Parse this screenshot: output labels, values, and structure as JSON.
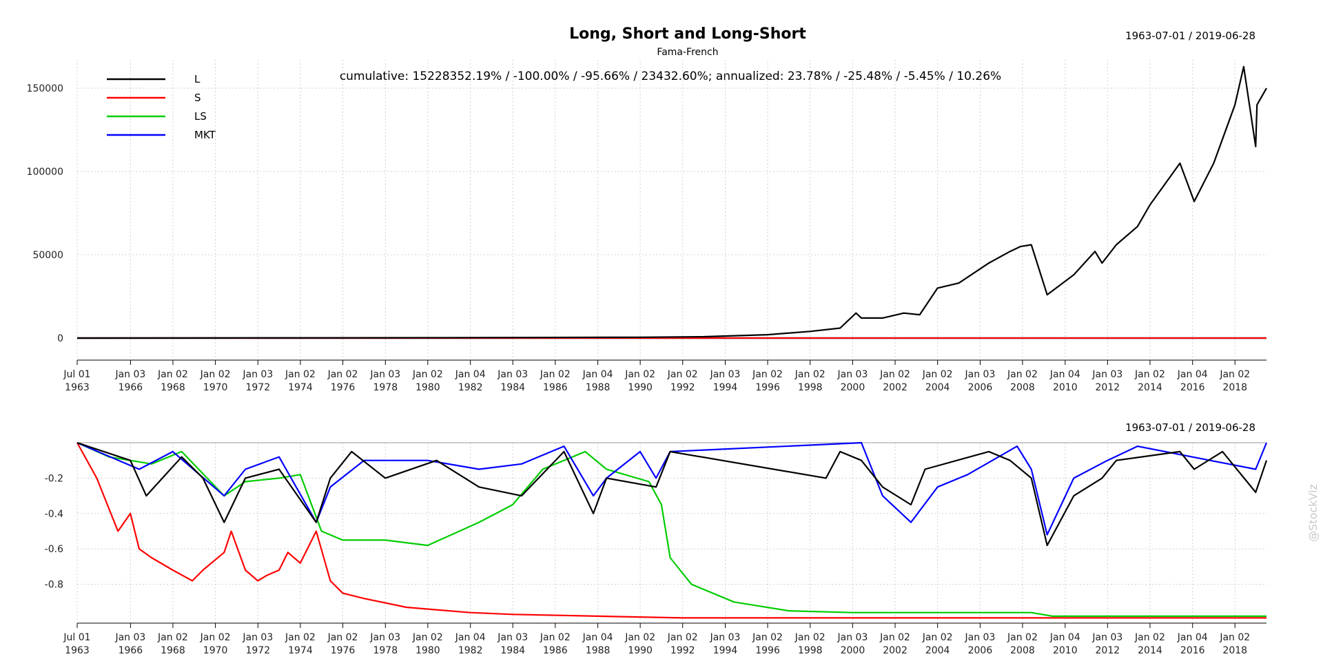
{
  "chart_data": [
    {
      "type": "line",
      "title": "Long, Short and Long-Short",
      "subtitle": "Fama-French",
      "date_range": "1963-07-01 / 2019-06-28",
      "annotation": "cumulative: 15228352.19% / -100.00% / -95.66% / 23432.60%; annualized: 23.78% / -25.48% / -5.45% / 10.26%",
      "xlabel": "",
      "ylabel": "",
      "ylim": [
        -12000,
        167000
      ],
      "y_ticks": [
        "0",
        "50000",
        "100000",
        "150000"
      ],
      "x_ticks": [
        {
          "date": "1963-07-01",
          "label": [
            "Jul 01",
            "1963"
          ]
        },
        {
          "date": "1966-01-03",
          "label": [
            "Jan 03",
            "1966"
          ]
        },
        {
          "date": "1968-01-02",
          "label": [
            "Jan 02",
            "1968"
          ]
        },
        {
          "date": "1970-01-02",
          "label": [
            "Jan 02",
            "1970"
          ]
        },
        {
          "date": "1972-01-03",
          "label": [
            "Jan 03",
            "1972"
          ]
        },
        {
          "date": "1974-01-02",
          "label": [
            "Jan 02",
            "1974"
          ]
        },
        {
          "date": "1976-01-02",
          "label": [
            "Jan 02",
            "1976"
          ]
        },
        {
          "date": "1978-01-03",
          "label": [
            "Jan 03",
            "1978"
          ]
        },
        {
          "date": "1980-01-02",
          "label": [
            "Jan 02",
            "1980"
          ]
        },
        {
          "date": "1982-01-04",
          "label": [
            "Jan 04",
            "1982"
          ]
        },
        {
          "date": "1984-01-03",
          "label": [
            "Jan 03",
            "1984"
          ]
        },
        {
          "date": "1986-01-02",
          "label": [
            "Jan 02",
            "1986"
          ]
        },
        {
          "date": "1988-01-04",
          "label": [
            "Jan 04",
            "1988"
          ]
        },
        {
          "date": "1990-01-02",
          "label": [
            "Jan 02",
            "1990"
          ]
        },
        {
          "date": "1992-01-02",
          "label": [
            "Jan 02",
            "1992"
          ]
        },
        {
          "date": "1994-01-03",
          "label": [
            "Jan 03",
            "1994"
          ]
        },
        {
          "date": "1996-01-02",
          "label": [
            "Jan 02",
            "1996"
          ]
        },
        {
          "date": "1998-01-02",
          "label": [
            "Jan 02",
            "1998"
          ]
        },
        {
          "date": "2000-01-03",
          "label": [
            "Jan 03",
            "2000"
          ]
        },
        {
          "date": "2002-01-02",
          "label": [
            "Jan 02",
            "2002"
          ]
        },
        {
          "date": "2004-01-02",
          "label": [
            "Jan 02",
            "2004"
          ]
        },
        {
          "date": "2006-01-03",
          "label": [
            "Jan 03",
            "2006"
          ]
        },
        {
          "date": "2008-01-02",
          "label": [
            "Jan 02",
            "2008"
          ]
        },
        {
          "date": "2010-01-04",
          "label": [
            "Jan 04",
            "2010"
          ]
        },
        {
          "date": "2012-01-03",
          "label": [
            "Jan 03",
            "2012"
          ]
        },
        {
          "date": "2014-01-02",
          "label": [
            "Jan 02",
            "2014"
          ]
        },
        {
          "date": "2016-01-04",
          "label": [
            "Jan 04",
            "2016"
          ]
        },
        {
          "date": "2018-01-02",
          "label": [
            "Jan 02",
            "2018"
          ]
        }
      ],
      "legend": "top-left",
      "grid": true,
      "series": [
        {
          "name": "L",
          "color": "#000000",
          "x": [
            "1963-07-01",
            "1980-01-01",
            "1990-01-01",
            "1993-01-01",
            "1996-01-01",
            "1998-01-01",
            "1999-06-01",
            "2000-03-01",
            "2000-06-01",
            "2001-06-01",
            "2002-06-01",
            "2003-03-01",
            "2004-01-01",
            "2005-01-01",
            "2006-06-01",
            "2007-06-01",
            "2007-12-01",
            "2008-06-01",
            "2009-03-01",
            "2010-06-01",
            "2011-06-01",
            "2011-10-01",
            "2012-06-01",
            "2013-06-01",
            "2014-01-01",
            "2015-06-01",
            "2016-02-01",
            "2017-01-01",
            "2018-01-01",
            "2018-06-01",
            "2018-12-24",
            "2019-01-15",
            "2019-06-28"
          ],
          "values": [
            0,
            200,
            500,
            800,
            2000,
            4000,
            6000,
            15000,
            12000,
            12000,
            15000,
            14000,
            30000,
            33000,
            45000,
            52000,
            55000,
            56000,
            26000,
            38000,
            52000,
            45000,
            56000,
            67000,
            80000,
            105000,
            82000,
            105000,
            140000,
            163000,
            115000,
            140000,
            150000
          ]
        },
        {
          "name": "S",
          "color": "#ff0000",
          "x": [
            "1963-07-01",
            "2019-06-28"
          ],
          "values": [
            0,
            0
          ]
        },
        {
          "name": "LS",
          "color": "#00cc00",
          "x": [
            "1963-07-01",
            "2019-06-28"
          ],
          "values": [
            0,
            0
          ]
        },
        {
          "name": "MKT",
          "color": "#0000ff",
          "x": [
            "1963-07-01",
            "2019-06-28"
          ],
          "values": [
            0,
            0
          ]
        }
      ]
    },
    {
      "type": "line",
      "title": "",
      "date_range": "1963-07-01 / 2019-06-28",
      "xlabel": "",
      "ylabel": "",
      "ylim": [
        -1.0,
        0.0
      ],
      "y_ticks": [
        "-0.2",
        "-0.4",
        "-0.6",
        "-0.8"
      ],
      "grid": true,
      "series": [
        {
          "name": "S",
          "color": "#ff0000",
          "x": [
            "1963-07-01",
            "1964-06-01",
            "1965-06-01",
            "1966-01-01",
            "1966-06-01",
            "1967-01-01",
            "1968-01-01",
            "1968-12-01",
            "1969-06-01",
            "1970-06-01",
            "1970-10-01",
            "1971-06-01",
            "1972-01-01",
            "1972-06-01",
            "1973-01-01",
            "1973-06-01",
            "1974-01-01",
            "1974-06-01",
            "1974-10-01",
            "1975-06-01",
            "1976-01-01",
            "1977-01-01",
            "1979-01-01",
            "1982-01-01",
            "1984-01-01",
            "1988-01-01",
            "1992-01-01",
            "2019-06-28"
          ],
          "values": [
            0.0,
            -0.2,
            -0.5,
            -0.4,
            -0.6,
            -0.65,
            -0.72,
            -0.78,
            -0.72,
            -0.62,
            -0.5,
            -0.72,
            -0.78,
            -0.75,
            -0.72,
            -0.62,
            -0.68,
            -0.58,
            -0.5,
            -0.78,
            -0.85,
            -0.88,
            -0.93,
            -0.96,
            -0.97,
            -0.98,
            -0.99,
            -0.99
          ]
        },
        {
          "name": "LS",
          "color": "#00cc00",
          "x": [
            "1963-07-01",
            "1965-01-01",
            "1966-01-01",
            "1967-01-01",
            "1968-06-01",
            "1970-06-01",
            "1971-06-01",
            "1973-01-01",
            "1974-01-01",
            "1975-01-01",
            "1976-01-01",
            "1978-01-01",
            "1980-01-01",
            "1982-06-01",
            "1984-01-01",
            "1985-06-01",
            "1987-06-01",
            "1988-06-01",
            "1990-06-01",
            "1991-01-01",
            "1991-06-01",
            "1992-06-01",
            "1994-06-01",
            "1997-01-01",
            "2000-01-01",
            "2003-01-01",
            "2006-01-01",
            "2008-06-01",
            "2009-06-01",
            "2019-06-28"
          ],
          "values": [
            0.0,
            -0.08,
            -0.1,
            -0.12,
            -0.05,
            -0.3,
            -0.22,
            -0.2,
            -0.18,
            -0.5,
            -0.55,
            -0.55,
            -0.58,
            -0.45,
            -0.35,
            -0.15,
            -0.05,
            -0.15,
            -0.22,
            -0.35,
            -0.65,
            -0.8,
            -0.9,
            -0.95,
            -0.96,
            -0.96,
            -0.96,
            -0.96,
            -0.98,
            -0.98
          ]
        },
        {
          "name": "MKT",
          "color": "#0000ff",
          "x": [
            "1963-07-01",
            "1966-06-01",
            "1968-01-01",
            "1970-06-01",
            "1971-06-01",
            "1973-01-01",
            "1974-10-01",
            "1975-06-01",
            "1977-01-01",
            "1980-01-01",
            "1982-06-01",
            "1984-06-01",
            "1986-06-01",
            "1987-10-19",
            "1988-06-01",
            "1990-01-01",
            "1990-10-01",
            "1991-06-01",
            "2000-06-01",
            "2001-06-01",
            "2002-10-01",
            "2004-01-01",
            "2005-06-01",
            "2007-10-01",
            "2008-06-01",
            "2009-03-01",
            "2010-06-01",
            "2012-01-01",
            "2013-06-01",
            "2018-12-24",
            "2019-06-28"
          ],
          "values": [
            0.0,
            -0.15,
            -0.05,
            -0.3,
            -0.15,
            -0.08,
            -0.45,
            -0.25,
            -0.1,
            -0.1,
            -0.15,
            -0.12,
            -0.02,
            -0.3,
            -0.2,
            -0.05,
            -0.2,
            -0.05,
            0.0,
            -0.3,
            -0.45,
            -0.25,
            -0.18,
            -0.02,
            -0.15,
            -0.52,
            -0.2,
            -0.1,
            -0.02,
            -0.15,
            0.0
          ]
        },
        {
          "name": "L",
          "color": "#000000",
          "x": [
            "1963-07-01",
            "1966-01-01",
            "1966-10-01",
            "1968-06-01",
            "1969-06-01",
            "1970-06-01",
            "1971-06-01",
            "1973-01-01",
            "1974-10-01",
            "1975-06-01",
            "1976-06-01",
            "1978-01-01",
            "1980-06-01",
            "1982-06-01",
            "1984-06-01",
            "1986-06-01",
            "1987-10-19",
            "1988-06-01",
            "1990-10-01",
            "1991-06-01",
            "1998-10-01",
            "1999-06-01",
            "2000-06-01",
            "2001-06-01",
            "2002-10-01",
            "2003-06-01",
            "2006-06-01",
            "2007-06-01",
            "2008-06-01",
            "2009-03-01",
            "2010-06-01",
            "2011-10-01",
            "2012-06-01",
            "2015-06-01",
            "2016-02-01",
            "2017-06-01",
            "2018-12-24",
            "2019-06-28"
          ],
          "values": [
            0.0,
            -0.1,
            -0.3,
            -0.08,
            -0.2,
            -0.45,
            -0.2,
            -0.15,
            -0.45,
            -0.2,
            -0.05,
            -0.2,
            -0.1,
            -0.25,
            -0.3,
            -0.05,
            -0.4,
            -0.2,
            -0.25,
            -0.05,
            -0.2,
            -0.05,
            -0.1,
            -0.25,
            -0.35,
            -0.15,
            -0.05,
            -0.1,
            -0.2,
            -0.58,
            -0.3,
            -0.2,
            -0.1,
            -0.05,
            -0.15,
            -0.05,
            -0.28,
            -0.1
          ]
        }
      ]
    }
  ],
  "watermark": "@StockViz"
}
